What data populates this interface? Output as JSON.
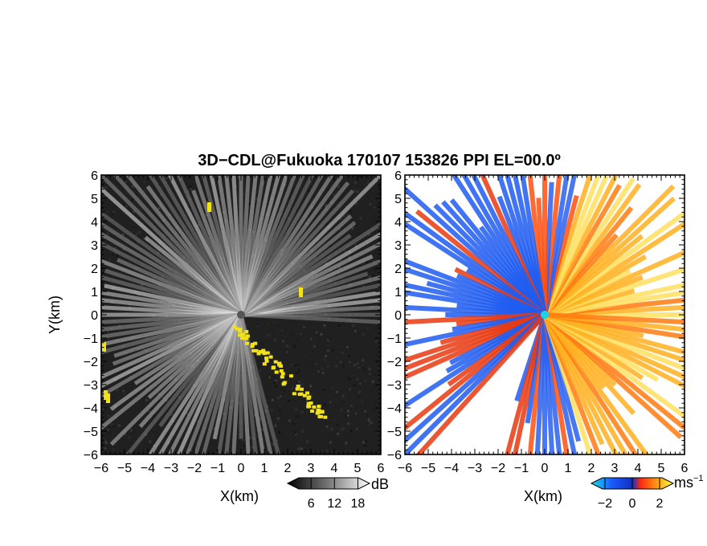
{
  "chart_data": {
    "title": "3D−CDL@Fukuoka 170107 153826 PPI EL=00.0º",
    "panels": [
      {
        "type": "heatmap",
        "field": "reflectivity",
        "xlabel": "X(km)",
        "ylabel": "Y(km)",
        "xlim": [
          -6,
          6
        ],
        "ylim": [
          -6,
          6
        ],
        "xticks": [
          "−6",
          "−5",
          "−4",
          "−3",
          "−2",
          "−1",
          "0",
          "1",
          "2",
          "3",
          "4",
          "5",
          "6"
        ],
        "yticks": [
          "−6",
          "−5",
          "−4",
          "−3",
          "−2",
          "−1",
          "0",
          "1",
          "2",
          "3",
          "4",
          "5",
          "6"
        ],
        "background": "#202020",
        "highlight_color": "#f2e21a",
        "colorbar": {
          "unit": "dB",
          "ticks": [
            "6",
            "12",
            "18"
          ],
          "range": [
            0,
            21
          ]
        }
      },
      {
        "type": "heatmap",
        "field": "doppler_velocity",
        "xlabel": "X(km)",
        "xlim": [
          -6,
          6
        ],
        "ylim": [
          -6,
          6
        ],
        "xticks": [
          "−6",
          "−5",
          "−4",
          "−3",
          "−2",
          "−1",
          "0",
          "1",
          "2",
          "3",
          "4",
          "5",
          "6"
        ],
        "yticks": [
          "−6",
          "−5",
          "−4",
          "−3",
          "−2",
          "−1",
          "0",
          "1",
          "2",
          "3",
          "4",
          "5",
          "6"
        ],
        "colorbar": {
          "unit": "ms",
          "unit_sup": "−1",
          "ticks": [
            "−2",
            "0",
            "2"
          ],
          "range": [
            -3,
            3
          ]
        }
      }
    ],
    "site_marker_colors": {
      "reflectivity": "#555555",
      "velocity": "#19d3e6"
    }
  }
}
